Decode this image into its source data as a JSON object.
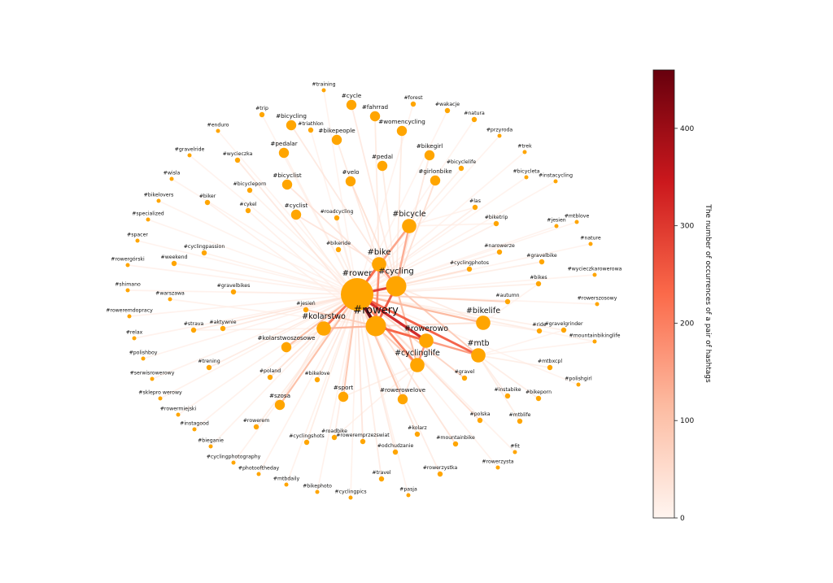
{
  "colorbar": {
    "label": "The number of occurrences of a pair of hashtags",
    "min": 0,
    "max": 460,
    "ticks": [
      0,
      100,
      200,
      300,
      400
    ],
    "colors": [
      "#fff5f0",
      "#fcbba1",
      "#fb6a4a",
      "#cb181d",
      "#67000d"
    ]
  },
  "node_color": "#ffa500",
  "hubs": [
    "#rower",
    "#rowery",
    "#cycling",
    "#rowerowo",
    "#bike",
    "#mtb",
    "#cyclinglife",
    "#kolarstwo",
    "#bicycle",
    "#bikelife"
  ],
  "nodes": [
    {
      "label": "#rower",
      "size": 5
    },
    {
      "label": "#rowery",
      "size": 4
    },
    {
      "label": "#cycling",
      "size": 4
    },
    {
      "label": "#bike",
      "size": 3
    },
    {
      "label": "#rowerowo",
      "size": 3
    },
    {
      "label": "#cyclinglife",
      "size": 3
    },
    {
      "label": "#mtb",
      "size": 3
    },
    {
      "label": "#bicycle",
      "size": 3
    },
    {
      "label": "#kolarstwo",
      "size": 3
    },
    {
      "label": "#bikelife",
      "size": 3
    },
    {
      "label": "#training",
      "size": 0
    },
    {
      "label": "#cycle",
      "size": 2
    },
    {
      "label": "#fahrrad",
      "size": 2
    },
    {
      "label": "#forest",
      "size": 1
    },
    {
      "label": "#wakacje",
      "size": 1
    },
    {
      "label": "#trip",
      "size": 1
    },
    {
      "label": "#bicycling",
      "size": 2
    },
    {
      "label": "#natura",
      "size": 1
    },
    {
      "label": "#triathlon",
      "size": 1
    },
    {
      "label": "#bikepeople",
      "size": 2
    },
    {
      "label": "#womencycling",
      "size": 2
    },
    {
      "label": "#enduro",
      "size": 0
    },
    {
      "label": "#przyroda",
      "size": 0
    },
    {
      "label": "#pedalar",
      "size": 2
    },
    {
      "label": "#bikegirl",
      "size": 2
    },
    {
      "label": "#gravelride",
      "size": 0
    },
    {
      "label": "#wycieczka",
      "size": 1
    },
    {
      "label": "#trek",
      "size": 0
    },
    {
      "label": "#pedal",
      "size": 2
    },
    {
      "label": "#bicyclelife",
      "size": 1
    },
    {
      "label": "#bicycleporn",
      "size": 1
    },
    {
      "label": "#bicycleta",
      "size": 0
    },
    {
      "label": "#wisla",
      "size": 0
    },
    {
      "label": "#bicyclist",
      "size": 2
    },
    {
      "label": "#velo",
      "size": 2
    },
    {
      "label": "#girlonbike",
      "size": 2
    },
    {
      "label": "#instacycling",
      "size": 0
    },
    {
      "label": "#bikelovers",
      "size": 0
    },
    {
      "label": "#biker",
      "size": 1
    },
    {
      "label": "#cykel",
      "size": 1
    },
    {
      "label": "#cyclist",
      "size": 2
    },
    {
      "label": "#las",
      "size": 1
    },
    {
      "label": "#specialized",
      "size": 0
    },
    {
      "label": "#roadcycling",
      "size": 1
    },
    {
      "label": "#biketrip",
      "size": 1
    },
    {
      "label": "#jesien",
      "size": 0
    },
    {
      "label": "#mtblove",
      "size": 0
    },
    {
      "label": "#spacer",
      "size": 0
    },
    {
      "label": "#nature",
      "size": 0
    },
    {
      "label": "#cyclingpassion",
      "size": 1
    },
    {
      "label": "#bikeride",
      "size": 1
    },
    {
      "label": "#narowerze",
      "size": 1
    },
    {
      "label": "#rowergórski",
      "size": 0
    },
    {
      "label": "#weekend",
      "size": 1
    },
    {
      "label": "#cyclingphotos",
      "size": 1
    },
    {
      "label": "#gravelbike",
      "size": 1
    },
    {
      "label": "#wycieczkarowerowa",
      "size": 0
    },
    {
      "label": "#shimano",
      "size": 0
    },
    {
      "label": "#gravelbikes",
      "size": 1
    },
    {
      "label": "#bikes",
      "size": 1
    },
    {
      "label": "#warszawa",
      "size": 0
    },
    {
      "label": "#rowerszosowy",
      "size": 0
    },
    {
      "label": "#jesień",
      "size": 1
    },
    {
      "label": "#autumn",
      "size": 1
    },
    {
      "label": "#roweremdopracy",
      "size": 0
    },
    {
      "label": "#strava",
      "size": 1
    },
    {
      "label": "#aktywnie",
      "size": 1
    },
    {
      "label": "#ride",
      "size": 1
    },
    {
      "label": "#gravelgrinder",
      "size": 1
    },
    {
      "label": "#relax",
      "size": 0
    },
    {
      "label": "#mountainbikinglife",
      "size": 0
    },
    {
      "label": "#kolarstwoszosowe",
      "size": 2
    },
    {
      "label": "#polishboy",
      "size": 0
    },
    {
      "label": "#trening",
      "size": 1
    },
    {
      "label": "#mtbxcpl",
      "size": 1
    },
    {
      "label": "#poland",
      "size": 1
    },
    {
      "label": "#bikelove",
      "size": 1
    },
    {
      "label": "#gravel",
      "size": 1
    },
    {
      "label": "#polishgirl",
      "size": 0
    },
    {
      "label": "#serwisrowerowy",
      "size": 0
    },
    {
      "label": "#sport",
      "size": 2
    },
    {
      "label": "#instabike",
      "size": 1
    },
    {
      "label": "#rowerowelove",
      "size": 2
    },
    {
      "label": "#bikeporn",
      "size": 1
    },
    {
      "label": "#sklepro werowy",
      "size": 0
    },
    {
      "label": "#szosa",
      "size": 2
    },
    {
      "label": "#rowermiejski",
      "size": 0
    },
    {
      "label": "#polska",
      "size": 1
    },
    {
      "label": "#mtblife",
      "size": 1
    },
    {
      "label": "#instagood",
      "size": 0
    },
    {
      "label": "#rowerem",
      "size": 1
    },
    {
      "label": "#roadbike",
      "size": 1
    },
    {
      "label": "#kolarz",
      "size": 1
    },
    {
      "label": "#bieganie",
      "size": 0
    },
    {
      "label": "#cyclingshots",
      "size": 1
    },
    {
      "label": "#roweremprzezswiat",
      "size": 1
    },
    {
      "label": "#mountainbike",
      "size": 1
    },
    {
      "label": "#odchudzanie",
      "size": 1
    },
    {
      "label": "#fit",
      "size": 0
    },
    {
      "label": "#cyclingphotography",
      "size": 0
    },
    {
      "label": "#rowerzysta",
      "size": 0
    },
    {
      "label": "#photooftheday",
      "size": 0
    },
    {
      "label": "#rowerzystka",
      "size": 1
    },
    {
      "label": "#travel",
      "size": 1
    },
    {
      "label": "#mtbdaily",
      "size": 0
    },
    {
      "label": "#bikephoto",
      "size": 0
    },
    {
      "label": "#cyclingpics",
      "size": 0
    },
    {
      "label": "#pasja",
      "size": 0
    }
  ],
  "edges": [
    [
      "#rower",
      "#rowery",
      460
    ],
    [
      "#rower",
      "#rowerowo",
      330
    ],
    [
      "#rower",
      "#cycling",
      300
    ],
    [
      "#rowery",
      "#cycling",
      260
    ],
    [
      "#rower",
      "#mtb",
      250
    ],
    [
      "#rowery",
      "#rowerowo",
      240
    ],
    [
      "#rower",
      "#bike",
      230
    ],
    [
      "#rower",
      "#kolarstwo",
      220
    ],
    [
      "#rower",
      "#cyclinglife",
      200
    ],
    [
      "#rowery",
      "#bike",
      190
    ],
    [
      "#cycling",
      "#bike",
      180
    ],
    [
      "#rowerowo",
      "#cyclinglife",
      170
    ],
    [
      "#rowery",
      "#mtb",
      160
    ],
    [
      "#rower",
      "#bicycle",
      150
    ],
    [
      "#cycling",
      "#bicycle",
      140
    ],
    [
      "#rowery",
      "#kolarstwo",
      130
    ],
    [
      "#rower",
      "#bikelife",
      120
    ],
    [
      "#cycling",
      "#cyclinglife",
      110
    ],
    [
      "#rower",
      "#szosa",
      110
    ],
    [
      "#rower",
      "#kolarstwoszosowe",
      100
    ],
    [
      "#rowery",
      "#cyclinglife",
      95
    ],
    [
      "#rower",
      "#sport",
      90
    ],
    [
      "#rower",
      "#rowerowelove",
      90
    ],
    [
      "#cycling",
      "#mtb",
      85
    ],
    [
      "#bike",
      "#bicycle",
      80
    ],
    [
      "#rowery",
      "#jesień",
      75
    ],
    [
      "#rower",
      "#autumn",
      70
    ],
    [
      "#rowerowo",
      "#mtb",
      70
    ],
    [
      "#rower",
      "#gravel",
      65
    ],
    [
      "#cycling",
      "#girlonbike",
      60
    ],
    [
      "#rower",
      "#polska",
      60
    ],
    [
      "#rowery",
      "#bikelife",
      55
    ],
    [
      "#cycling",
      "#velo",
      55
    ],
    [
      "#rower",
      "#cyclingphotos",
      50
    ],
    [
      "#rower",
      "#poland",
      50
    ],
    [
      "#rower",
      "#mountainbike",
      50
    ],
    [
      "#bike",
      "#cyclist",
      45
    ],
    [
      "#cycling",
      "#bicyclist",
      45
    ],
    [
      "#rower",
      "#roweremprzezswiat",
      45
    ],
    [
      "#rower",
      "#kolarz",
      40
    ],
    [
      "#rowerowo",
      "#rowerowelove",
      40
    ],
    [
      "#cycling",
      "#bikegirl",
      40
    ],
    [
      "#rower",
      "#bikelove",
      40
    ],
    [
      "#rower",
      "#strava",
      38
    ],
    [
      "#rower",
      "#aktywnie",
      35
    ],
    [
      "#rowery",
      "#wycieczka",
      35
    ],
    [
      "#cycling",
      "#bicycling",
      35
    ],
    [
      "#cycling",
      "#cycle",
      35
    ],
    [
      "#bike",
      "#fahrrad",
      32
    ],
    [
      "#cycling",
      "#pedal",
      32
    ],
    [
      "#cycling",
      "#womencycling",
      32
    ],
    [
      "#bike",
      "#bikepeople",
      30
    ],
    [
      "#rower",
      "#trening",
      30
    ],
    [
      "#rower",
      "#odchudzanie",
      30
    ],
    [
      "#rower",
      "#rowerzystka",
      28
    ],
    [
      "#rower",
      "#travel",
      28
    ],
    [
      "#rower",
      "#roadbike",
      28
    ],
    [
      "#rower",
      "#cyclingshots",
      26
    ],
    [
      "#rower",
      "#rowerem",
      26
    ],
    [
      "#mtb",
      "#mtblife",
      26
    ],
    [
      "#mtb",
      "#bikeporn",
      25
    ],
    [
      "#mtb",
      "#instabike",
      25
    ],
    [
      "#mtb",
      "#mtbxcpl",
      24
    ],
    [
      "#rower",
      "#bikes",
      24
    ],
    [
      "#rower",
      "#gravelbike",
      24
    ],
    [
      "#rower",
      "#narowerze",
      22
    ],
    [
      "#rower",
      "#biketrip",
      22
    ],
    [
      "#rower",
      "#las",
      22
    ],
    [
      "#bike",
      "#bicyclelife",
      20
    ],
    [
      "#rower",
      "#ride",
      20
    ],
    [
      "#rower",
      "#gravelgrinder",
      20
    ],
    [
      "#rowery",
      "#bikeride",
      20
    ],
    [
      "#rower",
      "#roadcycling",
      20
    ],
    [
      "#rowery",
      "#cyclist",
      20
    ],
    [
      "#rowery",
      "#cykel",
      18
    ],
    [
      "#rowery",
      "#biker",
      18
    ],
    [
      "#rower",
      "#gravelbikes",
      18
    ],
    [
      "#rower",
      "#weekend",
      18
    ],
    [
      "#rower",
      "#cyclingpassion",
      16
    ],
    [
      "#rowery",
      "#warszawa",
      16
    ],
    [
      "#rower",
      "#fit",
      15
    ],
    [
      "#rower",
      "#rowerzysta",
      15
    ],
    [
      "#rower",
      "#pasja",
      15
    ],
    [
      "#rower",
      "#cyclingpics",
      15
    ],
    [
      "#rower",
      "#bikephoto",
      15
    ],
    [
      "#rower",
      "#mtbdaily",
      14
    ],
    [
      "#rower",
      "#photooftheday",
      14
    ],
    [
      "#rower",
      "#cyclingphotography",
      14
    ],
    [
      "#rower",
      "#bieganie",
      14
    ],
    [
      "#rower",
      "#instagood",
      14
    ],
    [
      "#rower",
      "#rowermiejski",
      14
    ],
    [
      "#rower",
      "#sklepro werowy",
      14
    ],
    [
      "#rower",
      "#serwisrowerowy",
      13
    ],
    [
      "#rower",
      "#polishboy",
      13
    ],
    [
      "#rower",
      "#relax",
      13
    ],
    [
      "#rower",
      "#roweremdopracy",
      13
    ],
    [
      "#rower",
      "#shimano",
      13
    ],
    [
      "#rower",
      "#rowergórski",
      13
    ],
    [
      "#rower",
      "#spacer",
      12
    ],
    [
      "#rower",
      "#specialized",
      12
    ],
    [
      "#rower",
      "#bikelovers",
      12
    ],
    [
      "#rower",
      "#wisla",
      12
    ],
    [
      "#rower",
      "#gravelride",
      12
    ],
    [
      "#rower",
      "#enduro",
      12
    ],
    [
      "#rower",
      "#trip",
      12
    ],
    [
      "#rower",
      "#training",
      12
    ],
    [
      "#rower",
      "#triathlon",
      12
    ],
    [
      "#rower",
      "#forest",
      12
    ],
    [
      "#rower",
      "#wakacje",
      12
    ],
    [
      "#rower",
      "#natura",
      12
    ],
    [
      "#rower",
      "#przyroda",
      12
    ],
    [
      "#rower",
      "#trek",
      12
    ],
    [
      "#rower",
      "#bicycleta",
      12
    ],
    [
      "#rower",
      "#instacycling",
      12
    ],
    [
      "#rower",
      "#jesien",
      12
    ],
    [
      "#rower",
      "#mtblove",
      12
    ],
    [
      "#rower",
      "#nature",
      12
    ],
    [
      "#rower",
      "#wycieczkarowerowa",
      12
    ],
    [
      "#rower",
      "#rowerszosowy",
      12
    ],
    [
      "#rower",
      "#mountainbikinglife",
      12
    ],
    [
      "#rower",
      "#polishgirl",
      12
    ],
    [
      "#rower",
      "#pedalar",
      14
    ],
    [
      "#rower",
      "#bicycleporn",
      14
    ],
    [
      "#mtb",
      "#mountainbikinglife",
      12
    ],
    [
      "#mtb",
      "#gravelgrinder",
      12
    ],
    [
      "#bikelife",
      "#bikes",
      12
    ],
    [
      "#bikelife",
      "#ride",
      12
    ],
    [
      "#kolarstwo",
      "#szosa",
      30
    ],
    [
      "#kolarstwo",
      "#kolarstwoszosowe",
      30
    ],
    [
      "#kolarstwo",
      "#strava",
      14
    ],
    [
      "#cyclinglife",
      "#sport",
      20
    ],
    [
      "#cyclinglife",
      "#roadbike",
      14
    ],
    [
      "#cycling",
      "#cyclingphotos",
      18
    ],
    [
      "#cycling",
      "#bikelife",
      30
    ],
    [
      "#bicycle",
      "#biketrip",
      14
    ],
    [
      "#bicycle",
      "#las",
      14
    ]
  ]
}
